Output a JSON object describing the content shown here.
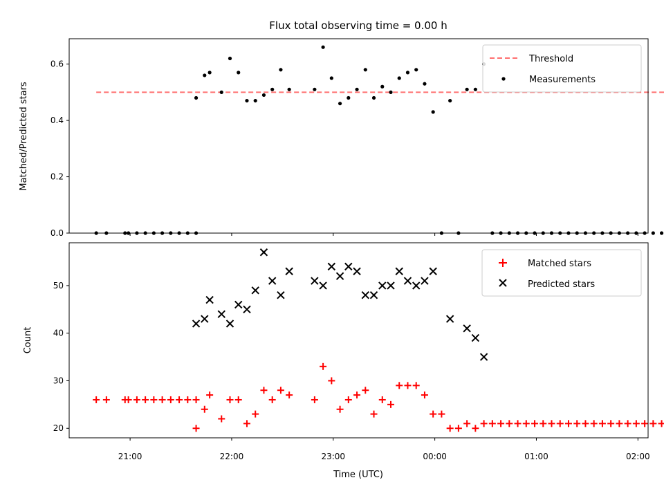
{
  "chart_data": [
    {
      "type": "scatter",
      "title": "Flux total observing time = 0.00 h",
      "ylabel": "Matched/Predicted stars",
      "xlabel": "",
      "ylim": [
        0,
        0.69
      ],
      "yticks": [
        "0.0",
        "0.2",
        "0.4",
        "0.6"
      ],
      "ytick_values": [
        0,
        0.2,
        0.4,
        0.6
      ],
      "grid": false,
      "legend_position": "top-right",
      "series": [
        {
          "name": "Threshold",
          "style": "dashed-line",
          "color": "#ff6f6f",
          "x": [
            "20:40",
            "02:20"
          ],
          "y": [
            0.5,
            0.5
          ]
        },
        {
          "name": "Measurements",
          "style": "dot",
          "color": "#000000",
          "x": [
            "20:40",
            "20:46",
            "20:57",
            "20:59",
            "21:04",
            "21:09",
            "21:14",
            "21:19",
            "21:24",
            "21:29",
            "21:34",
            "21:39",
            "21:39",
            "21:44",
            "21:47",
            "21:54",
            "21:59",
            "22:04",
            "22:09",
            "22:14",
            "22:19",
            "22:24",
            "22:29",
            "22:34",
            "22:49",
            "22:54",
            "22:59",
            "23:04",
            "23:09",
            "23:14",
            "23:19",
            "23:24",
            "23:29",
            "23:34",
            "23:39",
            "23:44",
            "23:49",
            "23:54",
            "23:59",
            "00:04",
            "00:09",
            "00:14",
            "00:19",
            "00:24",
            "00:29",
            "00:34",
            "00:39",
            "00:44",
            "00:49",
            "00:54",
            "00:59",
            "01:04",
            "01:09",
            "01:14",
            "01:19",
            "01:24",
            "01:29",
            "01:34",
            "01:39",
            "01:44",
            "01:49",
            "01:54",
            "01:59",
            "02:04",
            "02:09",
            "02:14"
          ],
          "y": [
            0,
            0,
            0,
            0,
            0,
            0,
            0,
            0,
            0,
            0,
            0,
            0,
            0.48,
            0.56,
            0.57,
            0.5,
            0.62,
            0.57,
            0.47,
            0.47,
            0.49,
            0.51,
            0.58,
            0.51,
            0.51,
            0.66,
            0.55,
            0.46,
            0.48,
            0.51,
            0.58,
            0.48,
            0.52,
            0.5,
            0.55,
            0.57,
            0.58,
            0.53,
            0.43,
            0,
            0.47,
            0,
            0.51,
            0.51,
            0.6,
            0,
            0,
            0,
            0,
            0,
            0,
            0,
            0,
            0,
            0,
            0,
            0,
            0,
            0,
            0,
            0,
            0,
            0,
            0,
            0,
            0
          ]
        }
      ]
    },
    {
      "type": "scatter",
      "title": "",
      "ylabel": "Count",
      "xlabel": "Time (UTC)",
      "ylim": [
        18,
        59
      ],
      "yticks": [
        "20",
        "30",
        "40",
        "50"
      ],
      "ytick_values": [
        20,
        30,
        40,
        50
      ],
      "xticks": [
        "21:00",
        "22:00",
        "23:00",
        "00:00",
        "01:00",
        "02:00"
      ],
      "grid": false,
      "legend_position": "top-right",
      "series": [
        {
          "name": "Matched stars",
          "marker": "plus",
          "color": "#ff0000",
          "x": [
            "20:40",
            "20:46",
            "20:57",
            "20:59",
            "21:04",
            "21:09",
            "21:14",
            "21:19",
            "21:24",
            "21:29",
            "21:34",
            "21:39",
            "21:39",
            "21:44",
            "21:47",
            "21:54",
            "21:59",
            "22:04",
            "22:09",
            "22:14",
            "22:19",
            "22:24",
            "22:29",
            "22:34",
            "22:49",
            "22:54",
            "22:59",
            "23:04",
            "23:09",
            "23:14",
            "23:19",
            "23:24",
            "23:29",
            "23:34",
            "23:39",
            "23:44",
            "23:49",
            "23:54",
            "23:59",
            "00:04",
            "00:09",
            "00:14",
            "00:19",
            "00:24",
            "00:29",
            "00:34",
            "00:39",
            "00:44",
            "00:49",
            "00:54",
            "00:59",
            "01:04",
            "01:09",
            "01:14",
            "01:19",
            "01:24",
            "01:29",
            "01:34",
            "01:39",
            "01:44",
            "01:49",
            "01:54",
            "01:59",
            "02:04",
            "02:09",
            "02:14"
          ],
          "y": [
            26,
            26,
            26,
            26,
            26,
            26,
            26,
            26,
            26,
            26,
            26,
            26,
            20,
            24,
            27,
            22,
            26,
            26,
            21,
            23,
            28,
            26,
            28,
            27,
            26,
            33,
            30,
            24,
            26,
            27,
            28,
            23,
            26,
            25,
            29,
            29,
            29,
            27,
            23,
            23,
            20,
            20,
            21,
            20,
            21,
            21,
            21,
            21,
            21,
            21,
            21,
            21,
            21,
            21,
            21,
            21,
            21,
            21,
            21,
            21,
            21,
            21,
            21,
            21,
            21,
            21
          ]
        },
        {
          "name": "Predicted stars",
          "marker": "x",
          "color": "#000000",
          "x": [
            "21:39",
            "21:44",
            "21:47",
            "21:54",
            "21:59",
            "22:04",
            "22:09",
            "22:14",
            "22:19",
            "22:24",
            "22:29",
            "22:34",
            "22:49",
            "22:54",
            "22:59",
            "23:04",
            "23:09",
            "23:14",
            "23:19",
            "23:24",
            "23:29",
            "23:34",
            "23:39",
            "23:44",
            "23:49",
            "23:54",
            "23:59",
            "00:09",
            "00:19",
            "00:24",
            "00:29"
          ],
          "y": [
            42,
            43,
            47,
            44,
            42,
            46,
            45,
            49,
            57,
            51,
            48,
            53,
            51,
            50,
            54,
            52,
            54,
            53,
            48,
            48,
            50,
            50,
            53,
            51,
            50,
            51,
            53,
            43,
            41,
            39,
            35
          ]
        }
      ]
    }
  ]
}
